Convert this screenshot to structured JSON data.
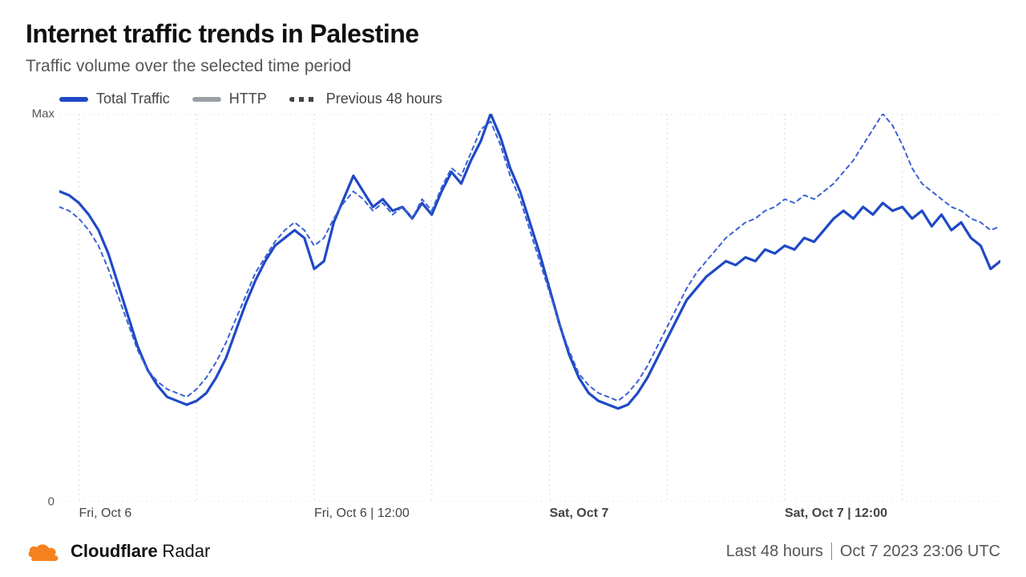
{
  "title": "Internet traffic trends in Palestine",
  "subtitle": "Traffic volume over the selected time period",
  "legend": {
    "items": [
      {
        "label": "Total Traffic",
        "color": "#1f49c5",
        "style": "solid",
        "width": 6
      },
      {
        "label": "HTTP",
        "color": "#9aa0a6",
        "style": "solid",
        "width": 6
      },
      {
        "label": "Previous 48 hours",
        "color": "#444444",
        "style": "dash",
        "width": 6
      }
    ]
  },
  "chart": {
    "type": "line",
    "background_color": "#ffffff",
    "grid_color": "#d9d9d9",
    "grid_dash": "2,4",
    "ylim": [
      0,
      1
    ],
    "ylabels": [
      {
        "label": "Max",
        "value": 1
      },
      {
        "label": "0",
        "value": 0
      }
    ],
    "xlim": [
      0,
      48
    ],
    "xticks": [
      {
        "x": 1.0,
        "label": "Fri, Oct 6",
        "bold": false
      },
      {
        "x": 13.0,
        "label": "Fri, Oct 6 | 12:00",
        "bold": false
      },
      {
        "x": 25.0,
        "label": "Sat, Oct 7",
        "bold": true
      },
      {
        "x": 37.0,
        "label": "Sat, Oct 7 | 12:00",
        "bold": true
      }
    ],
    "vgrid_x": [
      1.0,
      7.0,
      13.0,
      19.0,
      25.0,
      31.0,
      37.0,
      43.0
    ],
    "series": [
      {
        "name": "total_traffic",
        "color": "#1f49c5",
        "width": 3.2,
        "style": "solid",
        "points": [
          [
            0,
            0.8
          ],
          [
            0.5,
            0.79
          ],
          [
            1,
            0.77
          ],
          [
            1.5,
            0.74
          ],
          [
            2,
            0.7
          ],
          [
            2.5,
            0.64
          ],
          [
            3,
            0.56
          ],
          [
            3.5,
            0.48
          ],
          [
            4,
            0.4
          ],
          [
            4.5,
            0.34
          ],
          [
            5,
            0.3
          ],
          [
            5.5,
            0.27
          ],
          [
            6,
            0.26
          ],
          [
            6.5,
            0.25
          ],
          [
            7,
            0.26
          ],
          [
            7.5,
            0.28
          ],
          [
            8,
            0.32
          ],
          [
            8.5,
            0.37
          ],
          [
            9,
            0.44
          ],
          [
            9.5,
            0.51
          ],
          [
            10,
            0.57
          ],
          [
            10.5,
            0.62
          ],
          [
            11,
            0.66
          ],
          [
            11.5,
            0.68
          ],
          [
            12,
            0.7
          ],
          [
            12.5,
            0.68
          ],
          [
            13,
            0.6
          ],
          [
            13.5,
            0.62
          ],
          [
            14,
            0.72
          ],
          [
            14.5,
            0.78
          ],
          [
            15,
            0.84
          ],
          [
            15.5,
            0.8
          ],
          [
            16,
            0.76
          ],
          [
            16.5,
            0.78
          ],
          [
            17,
            0.75
          ],
          [
            17.5,
            0.76
          ],
          [
            18,
            0.73
          ],
          [
            18.5,
            0.77
          ],
          [
            19,
            0.74
          ],
          [
            19.5,
            0.8
          ],
          [
            20,
            0.85
          ],
          [
            20.5,
            0.82
          ],
          [
            21,
            0.88
          ],
          [
            21.5,
            0.93
          ],
          [
            22,
            1.0
          ],
          [
            22.5,
            0.94
          ],
          [
            23,
            0.86
          ],
          [
            23.5,
            0.8
          ],
          [
            24,
            0.72
          ],
          [
            24.5,
            0.64
          ],
          [
            25,
            0.55
          ],
          [
            25.5,
            0.46
          ],
          [
            26,
            0.38
          ],
          [
            26.5,
            0.32
          ],
          [
            27,
            0.28
          ],
          [
            27.5,
            0.26
          ],
          [
            28,
            0.25
          ],
          [
            28.5,
            0.24
          ],
          [
            29,
            0.25
          ],
          [
            29.5,
            0.28
          ],
          [
            30,
            0.32
          ],
          [
            30.5,
            0.37
          ],
          [
            31,
            0.42
          ],
          [
            31.5,
            0.47
          ],
          [
            32,
            0.52
          ],
          [
            32.5,
            0.55
          ],
          [
            33,
            0.58
          ],
          [
            33.5,
            0.6
          ],
          [
            34,
            0.62
          ],
          [
            34.5,
            0.61
          ],
          [
            35,
            0.63
          ],
          [
            35.5,
            0.62
          ],
          [
            36,
            0.65
          ],
          [
            36.5,
            0.64
          ],
          [
            37,
            0.66
          ],
          [
            37.5,
            0.65
          ],
          [
            38,
            0.68
          ],
          [
            38.5,
            0.67
          ],
          [
            39,
            0.7
          ],
          [
            39.5,
            0.73
          ],
          [
            40,
            0.75
          ],
          [
            40.5,
            0.73
          ],
          [
            41,
            0.76
          ],
          [
            41.5,
            0.74
          ],
          [
            42,
            0.77
          ],
          [
            42.5,
            0.75
          ],
          [
            43,
            0.76
          ],
          [
            43.5,
            0.73
          ],
          [
            44,
            0.75
          ],
          [
            44.5,
            0.71
          ],
          [
            45,
            0.74
          ],
          [
            45.5,
            0.7
          ],
          [
            46,
            0.72
          ],
          [
            46.5,
            0.68
          ],
          [
            47,
            0.66
          ],
          [
            47.5,
            0.6
          ],
          [
            48,
            0.62
          ]
        ]
      },
      {
        "name": "previous_48h",
        "color": "#3a62d6",
        "width": 2.0,
        "style": "dash",
        "dash": "5,5",
        "points": [
          [
            0,
            0.76
          ],
          [
            0.5,
            0.75
          ],
          [
            1,
            0.73
          ],
          [
            1.5,
            0.7
          ],
          [
            2,
            0.66
          ],
          [
            2.5,
            0.6
          ],
          [
            3,
            0.53
          ],
          [
            3.5,
            0.46
          ],
          [
            4,
            0.39
          ],
          [
            4.5,
            0.34
          ],
          [
            5,
            0.31
          ],
          [
            5.5,
            0.29
          ],
          [
            6,
            0.28
          ],
          [
            6.5,
            0.27
          ],
          [
            7,
            0.29
          ],
          [
            7.5,
            0.32
          ],
          [
            8,
            0.36
          ],
          [
            8.5,
            0.41
          ],
          [
            9,
            0.47
          ],
          [
            9.5,
            0.53
          ],
          [
            10,
            0.59
          ],
          [
            10.5,
            0.63
          ],
          [
            11,
            0.67
          ],
          [
            11.5,
            0.7
          ],
          [
            12,
            0.72
          ],
          [
            12.5,
            0.7
          ],
          [
            13,
            0.66
          ],
          [
            13.5,
            0.68
          ],
          [
            14,
            0.73
          ],
          [
            14.5,
            0.77
          ],
          [
            15,
            0.8
          ],
          [
            15.5,
            0.78
          ],
          [
            16,
            0.75
          ],
          [
            16.5,
            0.77
          ],
          [
            17,
            0.74
          ],
          [
            17.5,
            0.76
          ],
          [
            18,
            0.73
          ],
          [
            18.5,
            0.78
          ],
          [
            19,
            0.75
          ],
          [
            19.5,
            0.81
          ],
          [
            20,
            0.86
          ],
          [
            20.5,
            0.84
          ],
          [
            21,
            0.9
          ],
          [
            21.5,
            0.96
          ],
          [
            22,
            0.98
          ],
          [
            22.5,
            0.92
          ],
          [
            23,
            0.84
          ],
          [
            23.5,
            0.78
          ],
          [
            24,
            0.7
          ],
          [
            24.5,
            0.62
          ],
          [
            25,
            0.54
          ],
          [
            25.5,
            0.46
          ],
          [
            26,
            0.39
          ],
          [
            26.5,
            0.33
          ],
          [
            27,
            0.3
          ],
          [
            27.5,
            0.28
          ],
          [
            28,
            0.27
          ],
          [
            28.5,
            0.26
          ],
          [
            29,
            0.28
          ],
          [
            29.5,
            0.31
          ],
          [
            30,
            0.35
          ],
          [
            30.5,
            0.4
          ],
          [
            31,
            0.45
          ],
          [
            31.5,
            0.5
          ],
          [
            32,
            0.55
          ],
          [
            32.5,
            0.59
          ],
          [
            33,
            0.62
          ],
          [
            33.5,
            0.65
          ],
          [
            34,
            0.68
          ],
          [
            34.5,
            0.7
          ],
          [
            35,
            0.72
          ],
          [
            35.5,
            0.73
          ],
          [
            36,
            0.75
          ],
          [
            36.5,
            0.76
          ],
          [
            37,
            0.78
          ],
          [
            37.5,
            0.77
          ],
          [
            38,
            0.79
          ],
          [
            38.5,
            0.78
          ],
          [
            39,
            0.8
          ],
          [
            39.5,
            0.82
          ],
          [
            40,
            0.85
          ],
          [
            40.5,
            0.88
          ],
          [
            41,
            0.92
          ],
          [
            41.5,
            0.96
          ],
          [
            42,
            1.0
          ],
          [
            42.5,
            0.97
          ],
          [
            43,
            0.92
          ],
          [
            43.5,
            0.86
          ],
          [
            44,
            0.82
          ],
          [
            44.5,
            0.8
          ],
          [
            45,
            0.78
          ],
          [
            45.5,
            0.76
          ],
          [
            46,
            0.75
          ],
          [
            46.5,
            0.73
          ],
          [
            47,
            0.72
          ],
          [
            47.5,
            0.7
          ],
          [
            48,
            0.71
          ]
        ]
      }
    ]
  },
  "footer": {
    "brand": "Cloudflare",
    "brand_sub": "Radar",
    "brand_color": "#f6821f",
    "timerange": "Last 48 hours",
    "timestamp": "Oct 7 2023 23:06 UTC"
  }
}
